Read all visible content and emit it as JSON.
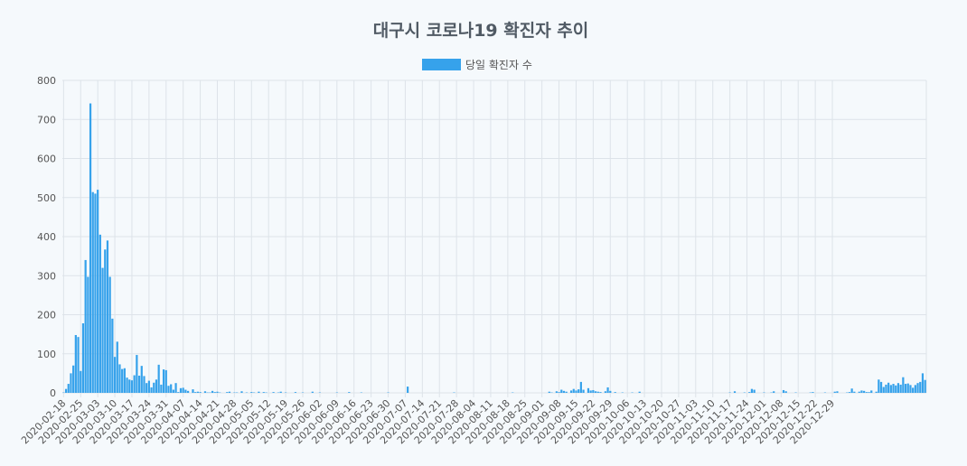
{
  "chart_data": {
    "type": "bar",
    "title": "대구시 코로나19 확진자 추이",
    "series": [
      {
        "name": "당일 확진자 수",
        "color": "#36a2eb",
        "values": [
          1,
          10,
          23,
          50,
          70,
          148,
          143,
          56,
          178,
          340,
          297,
          741,
          514,
          510,
          520,
          405,
          320,
          367,
          390,
          297,
          190,
          92,
          131,
          73,
          61,
          63,
          39,
          34,
          32,
          45,
          97,
          44,
          69,
          43,
          25,
          31,
          14,
          26,
          34,
          72,
          21,
          60,
          58,
          18,
          22,
          8,
          25,
          2,
          12,
          13,
          8,
          5,
          0,
          9,
          2,
          3,
          2,
          0,
          4,
          1,
          1,
          5,
          2,
          3,
          1,
          0,
          0,
          2,
          3,
          0,
          1,
          1,
          0,
          4,
          0,
          1,
          0,
          2,
          1,
          0,
          3,
          0,
          2,
          1,
          0,
          0,
          2,
          0,
          1,
          3,
          0,
          1,
          0,
          0,
          0,
          2,
          0,
          0,
          1,
          0,
          0,
          0,
          3,
          0,
          0,
          1,
          0,
          0,
          0,
          0,
          0,
          0,
          1,
          0,
          0,
          0,
          0,
          2,
          0,
          0,
          0,
          0,
          1,
          0,
          0,
          0,
          0,
          0,
          0,
          0,
          0,
          0,
          0,
          1,
          0,
          0,
          0,
          0,
          0,
          0,
          0,
          16,
          0,
          0,
          0,
          0,
          0,
          0,
          0,
          0,
          0,
          0,
          0,
          0,
          0,
          0,
          0,
          0,
          0,
          0,
          1,
          0,
          0,
          0,
          0,
          0,
          0,
          0,
          0,
          0,
          0,
          0,
          0,
          0,
          0,
          0,
          0,
          0,
          0,
          0,
          0,
          0,
          0,
          0,
          1,
          0,
          0,
          0,
          0,
          0,
          0,
          0,
          0,
          0,
          0,
          0,
          0,
          0,
          0,
          3,
          1,
          0,
          4,
          2,
          8,
          5,
          3,
          0,
          6,
          10,
          6,
          9,
          28,
          8,
          0,
          12,
          6,
          7,
          4,
          3,
          2,
          0,
          4,
          14,
          5,
          0,
          2,
          0,
          0,
          1,
          0,
          0,
          0,
          1,
          0,
          0,
          3,
          0,
          0,
          0,
          0,
          0,
          0,
          0,
          0,
          0,
          0,
          0,
          0,
          0,
          0,
          0,
          0,
          0,
          0,
          0,
          0,
          0,
          0,
          0,
          0,
          0,
          0,
          0,
          0,
          0,
          0,
          0,
          0,
          0,
          0,
          0,
          0,
          1,
          0,
          4,
          0,
          0,
          0,
          1,
          0,
          2,
          10,
          8,
          0,
          0,
          0,
          1,
          0,
          0,
          1,
          4,
          0,
          0,
          0,
          7,
          4,
          0,
          0,
          0,
          1,
          0,
          0,
          0,
          0,
          0,
          1,
          2,
          0,
          0,
          0,
          0,
          1,
          0,
          0,
          0,
          3,
          4,
          0,
          0,
          0,
          1,
          2,
          11,
          3,
          0,
          3,
          6,
          5,
          2,
          2,
          6,
          0,
          3,
          34,
          28,
          15,
          21,
          26,
          20,
          23,
          19,
          25,
          21,
          40,
          23,
          24,
          20,
          13,
          20,
          25,
          28,
          50,
          33
        ]
      }
    ],
    "x_start": "2020-02-18",
    "x_tick_labels": [
      "2020-02-18",
      "2020-02-25",
      "2020-03-03",
      "2020-03-10",
      "2020-03-17",
      "2020-03-24",
      "2020-03-31",
      "2020-04-07",
      "2020-04-14",
      "2020-04-21",
      "2020-04-28",
      "2020-05-05",
      "2020-05-12",
      "2020-05-19",
      "2020-05-26",
      "2020-06-02",
      "2020-06-09",
      "2020-06-16",
      "2020-06-23",
      "2020-06-30",
      "2020-07-07",
      "2020-07-14",
      "2020-07-21",
      "2020-07-28",
      "2020-08-04",
      "2020-08-11",
      "2020-08-18",
      "2020-08-25",
      "2020-09-01",
      "2020-09-08",
      "2020-09-15",
      "2020-09-22",
      "2020-09-29",
      "2020-10-06",
      "2020-10-13",
      "2020-10-20",
      "2020-10-27",
      "2020-11-03",
      "2020-11-10",
      "2020-11-17",
      "2020-11-24",
      "2020-12-01",
      "2020-12-08",
      "2020-12-15",
      "2020-12-22",
      "2020-12-29"
    ],
    "y_ticks": [
      "0",
      "100",
      "200",
      "300",
      "400",
      "500",
      "600",
      "700",
      "800"
    ],
    "ylim": [
      0,
      800
    ],
    "grid": true,
    "legend_position": "top-center"
  }
}
